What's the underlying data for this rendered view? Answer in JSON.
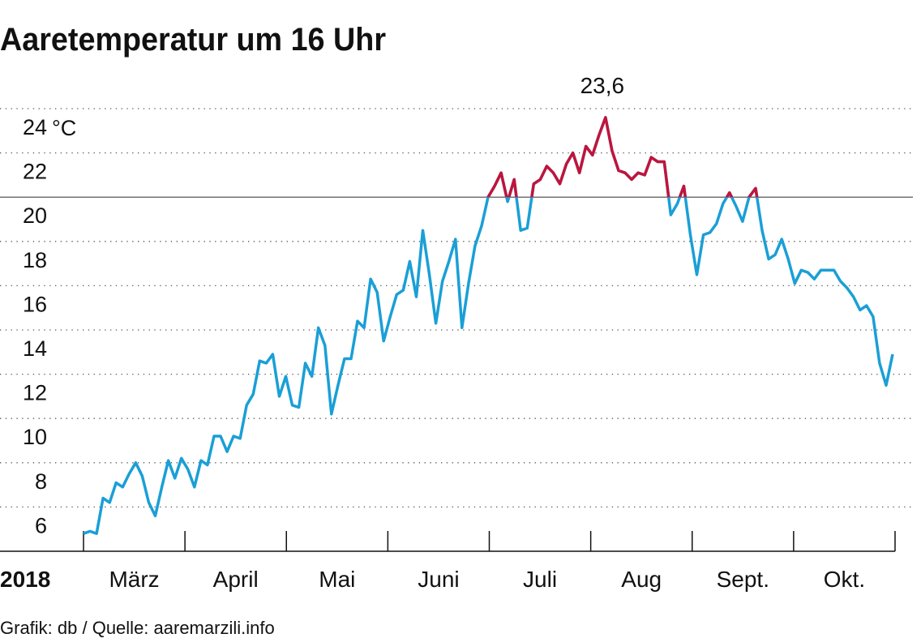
{
  "chart_data": {
    "type": "line",
    "title": "Aaretemperatur um 16 Uhr",
    "source": "Grafik: db / Quelle: aaremarzili.info",
    "year_label": "2018",
    "month_labels": [
      "März",
      "April",
      "Mai",
      "Juni",
      "Juli",
      "Aug",
      "Sept.",
      "Okt."
    ],
    "y_unit": "°C",
    "peak_label": "23,6",
    "highlight_above": 20,
    "color": "#1a9fd6",
    "highlight_color": "#c0143c",
    "ylim": [
      4,
      24
    ],
    "yticks": [
      6,
      8,
      10,
      12,
      14,
      16,
      18,
      20,
      22,
      24
    ],
    "grid": true,
    "values": [
      4.8,
      4.9,
      4.8,
      6.4,
      6.2,
      7.1,
      6.9,
      7.5,
      8.0,
      7.4,
      6.2,
      5.6,
      6.9,
      8.1,
      7.3,
      8.2,
      7.7,
      6.9,
      8.1,
      7.9,
      9.2,
      9.2,
      8.5,
      9.2,
      9.1,
      10.6,
      11.1,
      12.6,
      12.5,
      12.9,
      11.0,
      11.9,
      10.6,
      10.5,
      12.5,
      11.9,
      14.1,
      13.3,
      10.2,
      11.5,
      12.7,
      12.7,
      14.4,
      14.1,
      16.3,
      15.7,
      13.5,
      14.6,
      15.6,
      15.8,
      17.1,
      15.5,
      18.5,
      16.5,
      14.3,
      16.2,
      17.1,
      18.1,
      14.1,
      16.1,
      17.8,
      18.7,
      20.0,
      20.5,
      21.1,
      19.8,
      20.8,
      18.5,
      18.6,
      20.6,
      20.8,
      21.4,
      21.1,
      20.6,
      21.5,
      22.0,
      21.1,
      22.3,
      21.9,
      22.8,
      23.6,
      22.1,
      21.2,
      21.1,
      20.8,
      21.1,
      21.0,
      21.8,
      21.6,
      21.6,
      19.2,
      19.7,
      20.5,
      18.3,
      16.5,
      18.3,
      18.4,
      18.8,
      19.7,
      20.2,
      19.6,
      18.9,
      20.0,
      20.4,
      18.5,
      17.2,
      17.4,
      18.1,
      17.2,
      16.1,
      16.7,
      16.6,
      16.3,
      16.7,
      16.7,
      16.7,
      16.2,
      15.9,
      15.5,
      14.9,
      15.1,
      14.6,
      12.5,
      11.5,
      12.9
    ]
  }
}
